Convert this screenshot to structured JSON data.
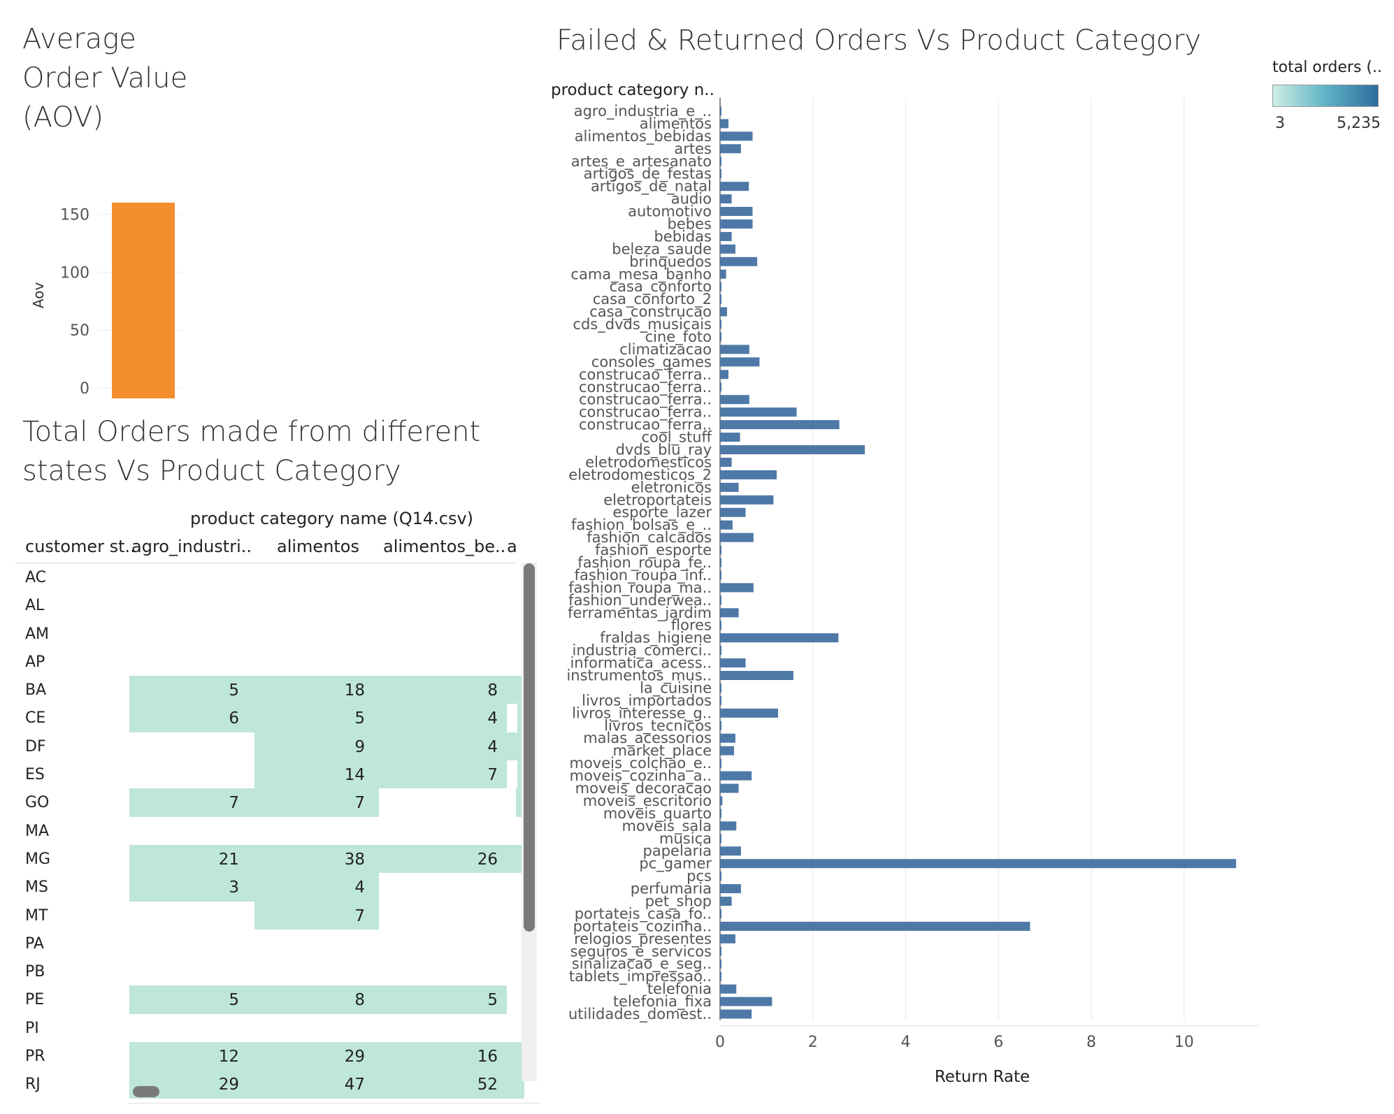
{
  "aov": {
    "title": "Average Order Value (AOV)",
    "chart_data": {
      "type": "bar",
      "ylabel": "Aov",
      "ylim": [
        0,
        160
      ],
      "yticks": [
        0,
        50,
        100,
        150
      ],
      "values": [
        160
      ],
      "color": "#f28e2b"
    }
  },
  "states_table": {
    "title": "Total Orders made from different states Vs Product Category",
    "column_group_header": "product category name (Q14.csv)",
    "row_header": "customer st..",
    "columns": [
      "agro_industri..",
      "alimentos",
      "alimentos_be..",
      "a"
    ],
    "cell_color": "#bfe6da",
    "rows": [
      {
        "state": "AC",
        "values": [
          "",
          "",
          ""
        ]
      },
      {
        "state": "AL",
        "values": [
          "",
          "",
          ""
        ]
      },
      {
        "state": "AM",
        "values": [
          "",
          "",
          ""
        ]
      },
      {
        "state": "AP",
        "values": [
          "",
          "",
          ""
        ]
      },
      {
        "state": "BA",
        "values": [
          "5",
          "18",
          "8"
        ]
      },
      {
        "state": "CE",
        "values": [
          "6",
          "5",
          "4"
        ]
      },
      {
        "state": "DF",
        "values": [
          "",
          "9",
          "4"
        ]
      },
      {
        "state": "ES",
        "values": [
          "",
          "14",
          "7"
        ]
      },
      {
        "state": "GO",
        "values": [
          "7",
          "7",
          ""
        ]
      },
      {
        "state": "MA",
        "values": [
          "",
          "",
          ""
        ]
      },
      {
        "state": "MG",
        "values": [
          "21",
          "38",
          "26"
        ]
      },
      {
        "state": "MS",
        "values": [
          "3",
          "4",
          ""
        ]
      },
      {
        "state": "MT",
        "values": [
          "",
          "7",
          ""
        ]
      },
      {
        "state": "PA",
        "values": [
          "",
          "",
          ""
        ]
      },
      {
        "state": "PB",
        "values": [
          "",
          "",
          ""
        ]
      },
      {
        "state": "PE",
        "values": [
          "5",
          "8",
          "5"
        ]
      },
      {
        "state": "PI",
        "values": [
          "",
          "",
          ""
        ]
      },
      {
        "state": "PR",
        "values": [
          "12",
          "29",
          "16"
        ]
      },
      {
        "state": "RJ",
        "values": [
          "29",
          "47",
          "52"
        ]
      }
    ]
  },
  "returns": {
    "title": "Failed & Returned Orders Vs Product Category",
    "legend": {
      "title": "total orders (..",
      "min_label": "3",
      "max_label": "5,235"
    },
    "chart_data": {
      "type": "bar",
      "orientation": "horizontal",
      "ylabel": "product category n..",
      "xlabel": "Return Rate",
      "xlim": [
        0,
        11.6
      ],
      "xticks": [
        0,
        2,
        4,
        6,
        8,
        10
      ],
      "grid": true,
      "bar_color": "#4e79a7",
      "categories": [
        "agro_industria_e_..",
        "alimentos",
        "alimentos_bebidas",
        "artes",
        "artes_e_artesanato",
        "artigos_de_festas",
        "artigos_de_natal",
        "audio",
        "automotivo",
        "bebes",
        "bebidas",
        "beleza_saude",
        "brinquedos",
        "cama_mesa_banho",
        "casa_conforto",
        "casa_conforto_2",
        "casa_construcao",
        "cds_dvds_musicais",
        "cine_foto",
        "climatizacao",
        "consoles_games",
        "construcao_ferra..",
        "construcao_ferra..",
        "construcao_ferra..",
        "construcao_ferra..",
        "construcao_ferra..",
        "cool_stuff",
        "dvds_blu_ray",
        "eletrodomesticos",
        "eletrodomesticos_2",
        "eletronicos",
        "eletroportateis",
        "esporte_lazer",
        "fashion_bolsas_e_..",
        "fashion_calcados",
        "fashion_esporte",
        "fashion_roupa_fe..",
        "fashion_roupa_inf..",
        "fashion_roupa_ma..",
        "fashion_underwea..",
        "ferramentas_jardim",
        "flores",
        "fraldas_higiene",
        "industria_comerci..",
        "informatica_acess..",
        "instrumentos_mus..",
        "la_cuisine",
        "livros_importados",
        "livros_interesse_g..",
        "livros_tecnicos",
        "malas_acessorios",
        "market_place",
        "moveis_colchao_e..",
        "moveis_cozinha_a..",
        "moveis_decoracao",
        "moveis_escritorio",
        "moveis_quarto",
        "moveis_sala",
        "musica",
        "papelaria",
        "pc_gamer",
        "pcs",
        "perfumaria",
        "pet_shop",
        "portateis_casa_fo..",
        "portateis_cozinha..",
        "relogios_presentes",
        "seguros_e_servicos",
        "sinalizacao_e_seg..",
        "tablets_impressao..",
        "telefonia",
        "telefonia_fixa",
        "utilidades_domest.."
      ],
      "values": [
        0.02,
        0.18,
        0.7,
        0.45,
        0.02,
        0.02,
        0.62,
        0.25,
        0.7,
        0.7,
        0.25,
        0.33,
        0.8,
        0.13,
        0.02,
        0.02,
        0.15,
        0.02,
        0.02,
        0.63,
        0.85,
        0.18,
        0.02,
        0.63,
        1.65,
        2.57,
        0.43,
        3.12,
        0.25,
        1.22,
        0.4,
        1.15,
        0.55,
        0.27,
        0.72,
        0.02,
        0.02,
        0.02,
        0.72,
        0.02,
        0.4,
        0.02,
        2.55,
        0.02,
        0.55,
        1.58,
        0.02,
        0.02,
        1.25,
        0.02,
        0.33,
        0.3,
        0.02,
        0.68,
        0.4,
        0.05,
        0.02,
        0.35,
        0.02,
        0.45,
        11.12,
        0.02,
        0.45,
        0.25,
        0.02,
        6.68,
        0.33,
        0.02,
        0.02,
        0.02,
        0.35,
        1.12,
        0.68
      ]
    }
  }
}
